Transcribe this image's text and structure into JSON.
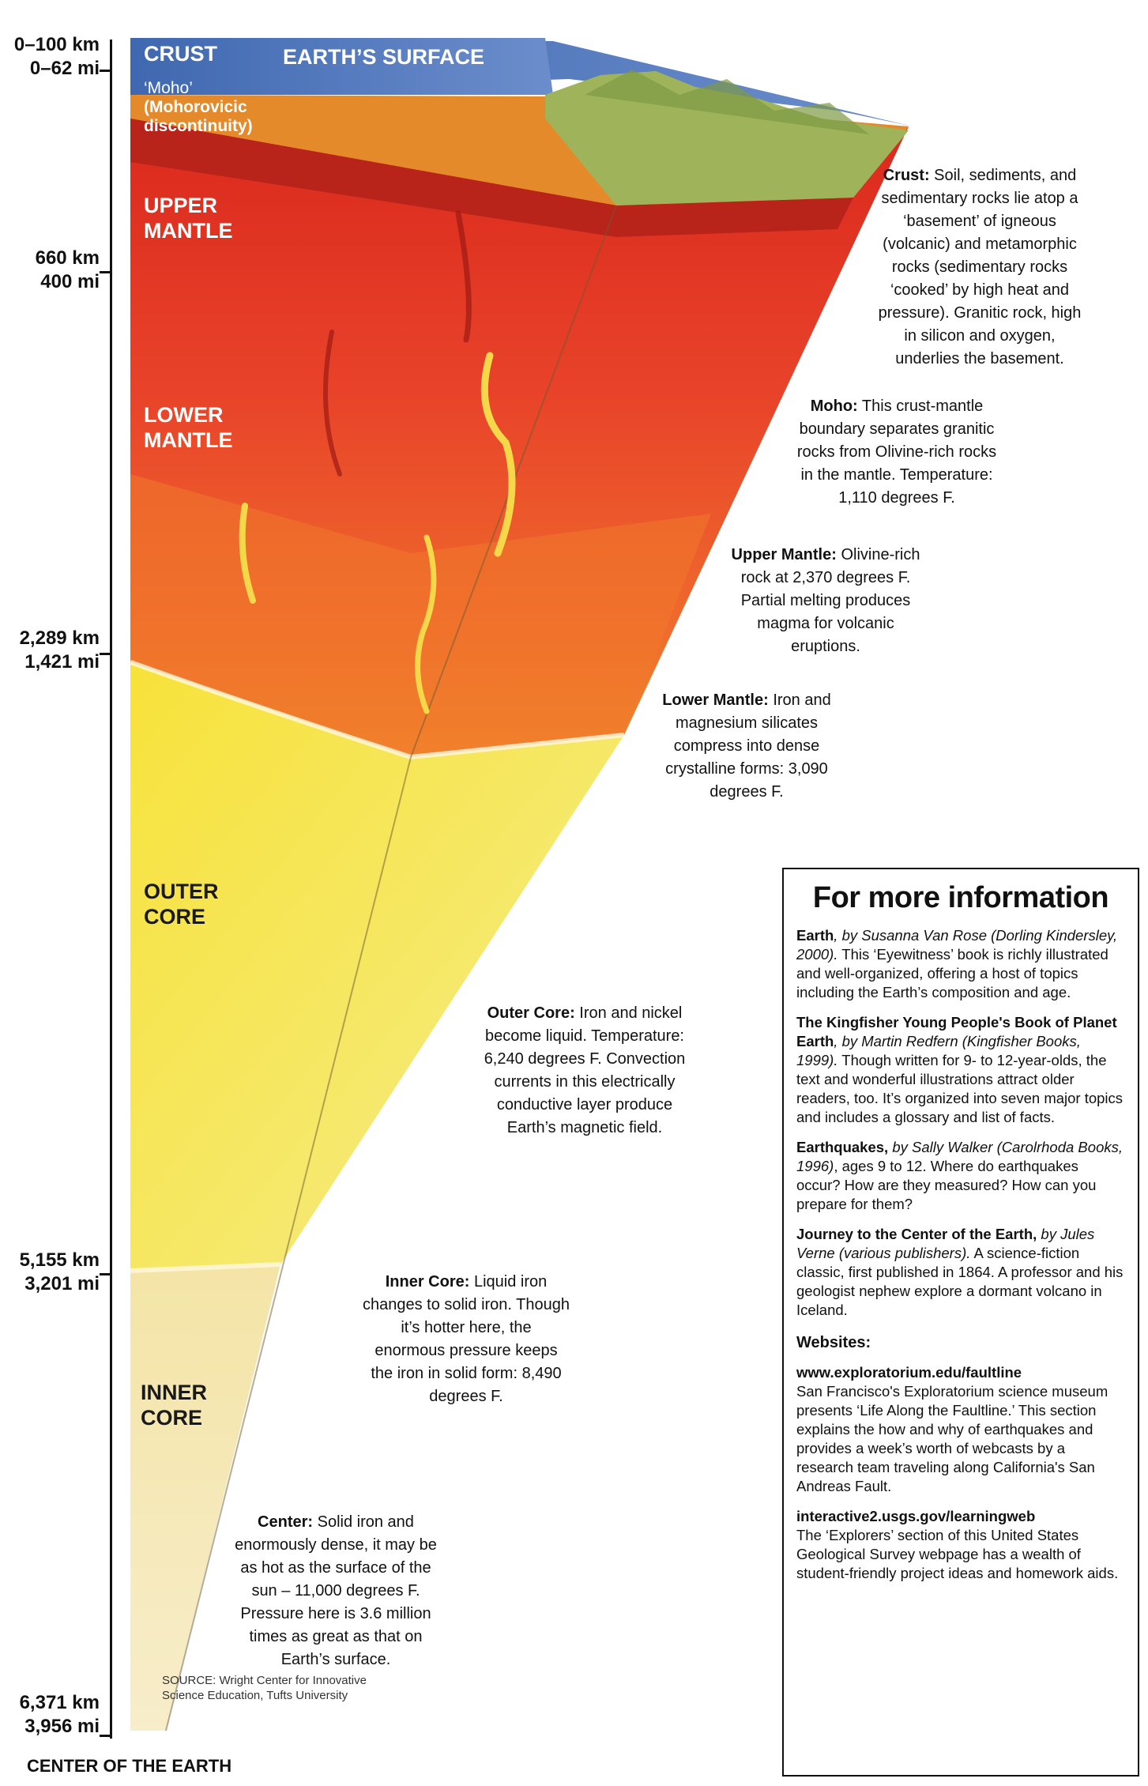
{
  "depth_markers": [
    {
      "km": "0–100 km",
      "mi": "0–62 mi"
    },
    {
      "km": "660 km",
      "mi": "400 mi"
    },
    {
      "km": "2,289 km",
      "mi": "1,421 mi"
    },
    {
      "km": "5,155 km",
      "mi": "3,201 mi"
    },
    {
      "km": "6,371 km",
      "mi": "3,956 mi"
    }
  ],
  "center_title": "CENTER OF THE EARTH",
  "layer_labels": {
    "crust": "CRUST",
    "surface": "EARTH’S SURFACE",
    "moho_1": "‘Moho’",
    "moho_2": "(Mohorovicic",
    "moho_3": "discontinuity)",
    "upper_1": "UPPER",
    "upper_2": "MANTLE",
    "lower_1": "LOWER",
    "lower_2": "MANTLE",
    "outer_1": "OUTER",
    "outer_2": "CORE",
    "inner_1": "INNER",
    "inner_2": "CORE"
  },
  "notes": {
    "crust": {
      "title": "Crust:",
      "lines": [
        "Soil, sediments, and",
        "sedimentary rocks lie atop a",
        "‘basement’ of igneous",
        "(volcanic) and metamorphic",
        "rocks (sedimentary rocks",
        "‘cooked’ by high heat and",
        "pressure). Granitic rock, high",
        "in silicon and oxygen,",
        "underlies the basement."
      ]
    },
    "moho": {
      "title": "Moho:",
      "lines": [
        "This crust-mantle",
        "boundary separates granitic",
        "rocks from Olivine-rich rocks",
        "in the mantle. Temperature:",
        "1,110 degrees F."
      ]
    },
    "upper_mantle": {
      "title": "Upper Mantle:",
      "lines": [
        "Olivine-rich",
        "rock at 2,370 degrees F.",
        "Partial melting produces",
        "magma for volcanic",
        "eruptions."
      ]
    },
    "lower_mantle": {
      "title": "Lower Mantle:",
      "lines": [
        "Iron and",
        "magnesium silicates",
        "compress into dense",
        "crystalline forms: 3,090",
        "degrees F."
      ]
    },
    "outer_core": {
      "title": "Outer Core:",
      "lines": [
        "Iron and nickel",
        "become liquid. Temperature:",
        "6,240 degrees F. Convection",
        "currents in this electrically",
        "conductive layer produce",
        "Earth’s magnetic field."
      ]
    },
    "inner_core": {
      "title": "Inner Core:",
      "lines": [
        "Liquid iron",
        "changes to solid iron. Though",
        "it’s hotter here, the",
        "enormous pressure keeps",
        "the iron in solid form: 8,490",
        "degrees F."
      ]
    },
    "center": {
      "title": "Center:",
      "lines": [
        "Solid iron and",
        "enormously dense, it may be",
        "as hot as the surface of the",
        "sun – 11,000 degrees F.",
        "Pressure here is 3.6 million",
        "times as great as that on",
        "Earth’s surface."
      ]
    }
  },
  "source": {
    "line1": "SOURCE: Wright Center for Innovative",
    "line2": "Science Education, Tufts University"
  },
  "info": {
    "heading": "For more information",
    "books": [
      {
        "title": "Earth",
        "author": ", by Susanna Van Rose (Dorling Kindersley, 2000).",
        "text": " This ‘Eyewitness’ book is richly illustrated and well-organized, offering a host of topics including the Earth’s composition and age."
      },
      {
        "title": "The Kingfisher Young People's Book of Planet Earth",
        "author": ", by Martin Redfern (Kingfisher Books, 1999).",
        "text": " Though written for 9- to 12-year-olds, the text and wonderful illustrations attract older readers, too. It’s organized into seven major topics and includes a glossary and list of facts."
      },
      {
        "title": "Earthquakes,",
        "author": " by Sally Walker (Carolrhoda Books, 1996)",
        "text": ", ages 9 to 12. Where do earthquakes occur? How are they measured? How can you prepare for them?"
      },
      {
        "title": "Journey to the Center of the Earth,",
        "author": " by Jules Verne (various publishers).",
        "text": " A science-fiction classic, first published in 1864. A professor and his geologist nephew explore a dormant volcano in Iceland."
      }
    ],
    "websites_heading": "Websites:",
    "websites": [
      {
        "url": "www.exploratorium.edu/faultline",
        "text": "San Francisco's Exploratorium science museum presents ‘Life Along the Faultline.’ This section explains the how and why of earthquakes and provides a week’s worth of webcasts by a research team traveling along California's San Andreas Fault."
      },
      {
        "url": "interactive2.usgs.gov/learningweb",
        "text": "The ‘Explorers’ section of this United States Geological Survey webpage has a wealth of student-friendly project ideas and homework aids."
      }
    ]
  }
}
